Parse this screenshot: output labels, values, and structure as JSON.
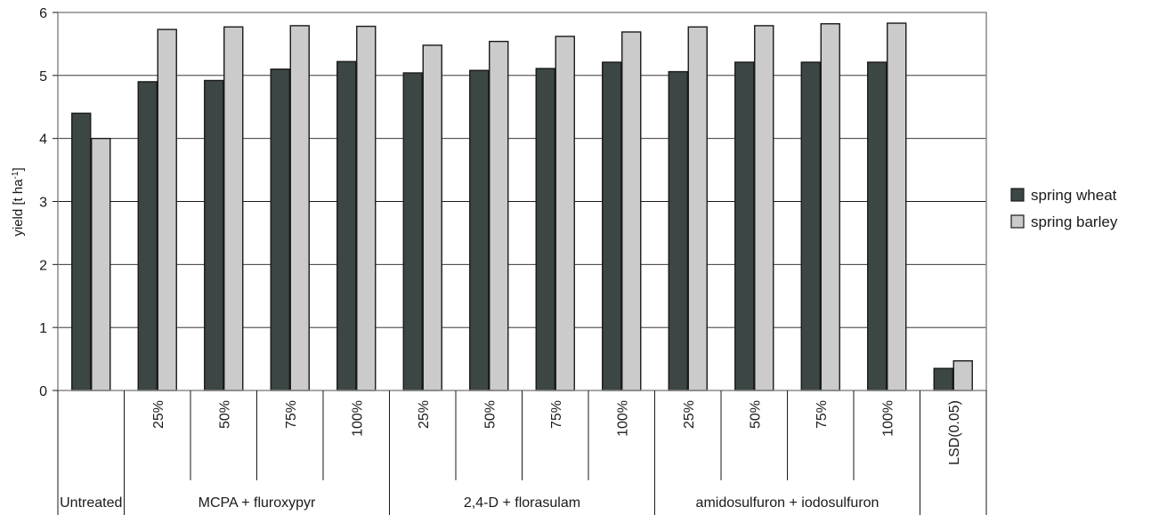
{
  "chart_data": {
    "type": "bar",
    "ylabel": "yield [t ha",
    "ylabel_sup": "-1",
    "ylabel_end": "]",
    "ylim": [
      0,
      6
    ],
    "yticks": [
      "0",
      "1",
      "2",
      "3",
      "4",
      "5",
      "6"
    ],
    "grid": true,
    "legend_position": "right",
    "colors": {
      "spring wheat": "#3c4644",
      "spring barley": "#cbcbcb"
    },
    "categories": [
      "",
      "25%",
      "50%",
      "75%",
      "100%",
      "25%",
      "50%",
      "75%",
      "100%",
      "25%",
      "50%",
      "75%",
      "100%",
      "LSD(0.05)"
    ],
    "groups": [
      {
        "label": "Untreated",
        "span": 1
      },
      {
        "label": "MCPA + fluroxypyr",
        "span": 4
      },
      {
        "label": "2,4-D + florasulam",
        "span": 4
      },
      {
        "label": "amidosulfuron + iodosulfuron",
        "span": 4
      }
    ],
    "series": [
      {
        "name": "spring wheat",
        "values": [
          4.4,
          4.9,
          4.92,
          5.1,
          5.22,
          5.04,
          5.08,
          5.11,
          5.21,
          5.06,
          5.21,
          5.21,
          5.21,
          0.35
        ]
      },
      {
        "name": "spring barley",
        "values": [
          4.0,
          5.73,
          5.77,
          5.79,
          5.78,
          5.48,
          5.54,
          5.62,
          5.69,
          5.77,
          5.79,
          5.82,
          5.83,
          0.47
        ]
      }
    ]
  }
}
